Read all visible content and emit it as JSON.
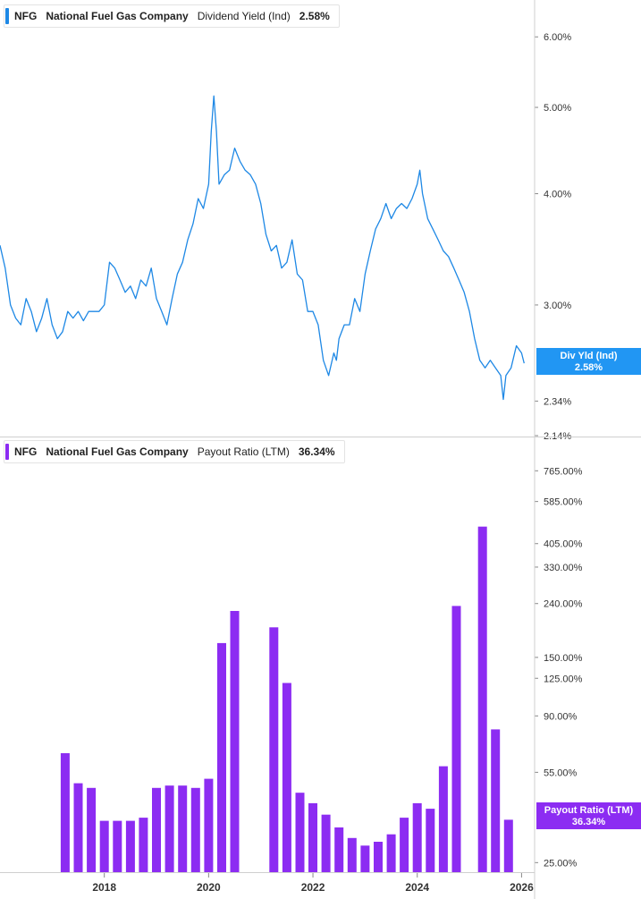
{
  "legend_top": {
    "ticker": "NFG",
    "company": "National Fuel Gas Company",
    "metric": "Dividend Yield (Ind)",
    "value": "2.58%",
    "color": "#1e88e5"
  },
  "legend_bottom": {
    "ticker": "NFG",
    "company": "National Fuel Gas Company",
    "metric": "Payout Ratio (LTM)",
    "value": "36.34%",
    "color": "#8c2cf2"
  },
  "flag_top": {
    "label": "Div Yld (Ind)",
    "value": "2.58%",
    "color": "#2196f3"
  },
  "flag_bottom": {
    "label": "Payout Ratio (LTM)",
    "value": "36.34%",
    "color": "#8c2cf2"
  },
  "chart_data": [
    {
      "type": "line",
      "series": [
        {
          "name": "Dividend Yield (Ind)",
          "color": "#1e88e5",
          "x": [
            2016.0,
            2016.1,
            2016.2,
            2016.3,
            2016.4,
            2016.5,
            2016.6,
            2016.7,
            2016.8,
            2016.9,
            2017.0,
            2017.1,
            2017.2,
            2017.3,
            2017.4,
            2017.5,
            2017.6,
            2017.7,
            2017.8,
            2017.9,
            2018.0,
            2018.1,
            2018.2,
            2018.3,
            2018.4,
            2018.5,
            2018.6,
            2018.7,
            2018.8,
            2018.9,
            2019.0,
            2019.1,
            2019.2,
            2019.3,
            2019.4,
            2019.5,
            2019.6,
            2019.7,
            2019.8,
            2019.9,
            2020.0,
            2020.05,
            2020.1,
            2020.15,
            2020.2,
            2020.3,
            2020.4,
            2020.5,
            2020.6,
            2020.7,
            2020.8,
            2020.9,
            2021.0,
            2021.1,
            2021.2,
            2021.3,
            2021.4,
            2021.5,
            2021.6,
            2021.7,
            2021.8,
            2021.9,
            2022.0,
            2022.1,
            2022.2,
            2022.3,
            2022.4,
            2022.45,
            2022.5,
            2022.6,
            2022.7,
            2022.8,
            2022.9,
            2023.0,
            2023.1,
            2023.2,
            2023.3,
            2023.4,
            2023.5,
            2023.6,
            2023.7,
            2023.8,
            2023.9,
            2024.0,
            2024.05,
            2024.1,
            2024.2,
            2024.3,
            2024.4,
            2024.5,
            2024.6,
            2024.7,
            2024.8,
            2024.9,
            2025.0,
            2025.1,
            2025.2,
            2025.3,
            2025.4,
            2025.5,
            2025.6,
            2025.65,
            2025.7,
            2025.8,
            2025.9,
            2026.0,
            2026.05
          ],
          "values": [
            3.5,
            3.3,
            3.0,
            2.9,
            2.85,
            3.05,
            2.95,
            2.8,
            2.9,
            3.05,
            2.85,
            2.75,
            2.8,
            2.95,
            2.9,
            2.95,
            2.88,
            2.95,
            2.95,
            2.95,
            3.0,
            3.35,
            3.3,
            3.2,
            3.1,
            3.15,
            3.05,
            3.2,
            3.15,
            3.3,
            3.05,
            2.95,
            2.85,
            3.05,
            3.25,
            3.35,
            3.55,
            3.7,
            3.95,
            3.85,
            4.1,
            4.7,
            5.15,
            4.7,
            4.1,
            4.2,
            4.25,
            4.5,
            4.35,
            4.25,
            4.2,
            4.1,
            3.9,
            3.6,
            3.45,
            3.5,
            3.3,
            3.35,
            3.55,
            3.25,
            3.2,
            2.95,
            2.95,
            2.85,
            2.6,
            2.5,
            2.65,
            2.6,
            2.75,
            2.85,
            2.85,
            3.05,
            2.95,
            3.25,
            3.45,
            3.65,
            3.75,
            3.9,
            3.75,
            3.85,
            3.9,
            3.85,
            3.95,
            4.1,
            4.25,
            4.0,
            3.75,
            3.65,
            3.55,
            3.45,
            3.4,
            3.3,
            3.2,
            3.1,
            2.95,
            2.75,
            2.6,
            2.55,
            2.6,
            2.55,
            2.5,
            2.35,
            2.5,
            2.55,
            2.7,
            2.65,
            2.58
          ]
        }
      ],
      "ylim": [
        2.14,
        6.6
      ],
      "yscale": "log",
      "yticks": [
        "6.00%",
        "5.00%",
        "4.00%",
        "3.00%",
        "2.34%",
        "2.14%"
      ],
      "ytick_values": [
        6.0,
        5.0,
        4.0,
        3.0,
        2.34,
        2.14
      ],
      "grid": false
    },
    {
      "type": "bar",
      "series": [
        {
          "name": "Payout Ratio (LTM)",
          "color": "#8c2cf2",
          "x": [
            2017.25,
            2017.5,
            2017.75,
            2018.0,
            2018.25,
            2018.5,
            2018.75,
            2019.0,
            2019.25,
            2019.5,
            2019.75,
            2020.0,
            2020.25,
            2020.5,
            2021.25,
            2021.5,
            2021.75,
            2022.0,
            2022.25,
            2022.5,
            2022.75,
            2023.0,
            2023.25,
            2023.5,
            2023.75,
            2024.0,
            2024.25,
            2024.5,
            2024.75,
            2025.25,
            2025.5,
            2025.75
          ],
          "values": [
            65,
            50,
            48,
            36,
            36,
            36,
            37,
            48,
            49,
            49,
            48,
            52,
            170,
            225,
            195,
            120,
            46,
            42,
            38,
            34,
            31,
            29,
            30,
            32,
            37,
            42,
            40,
            58,
            235,
            470,
            80,
            36.34
          ]
        }
      ],
      "ylim": [
        23,
        1000
      ],
      "yscale": "log",
      "yticks": [
        "765.00%",
        "585.00%",
        "405.00%",
        "330.00%",
        "240.00%",
        "150.00%",
        "125.00%",
        "90.00%",
        "55.00%",
        "25.00%"
      ],
      "ytick_values": [
        765,
        585,
        405,
        330,
        240,
        150,
        125,
        90,
        55,
        25
      ],
      "x_ticks": [
        "2018",
        "2020",
        "2022",
        "2024",
        "2026"
      ],
      "x_tick_values": [
        2018,
        2020,
        2022,
        2024,
        2026
      ],
      "grid": false
    }
  ]
}
